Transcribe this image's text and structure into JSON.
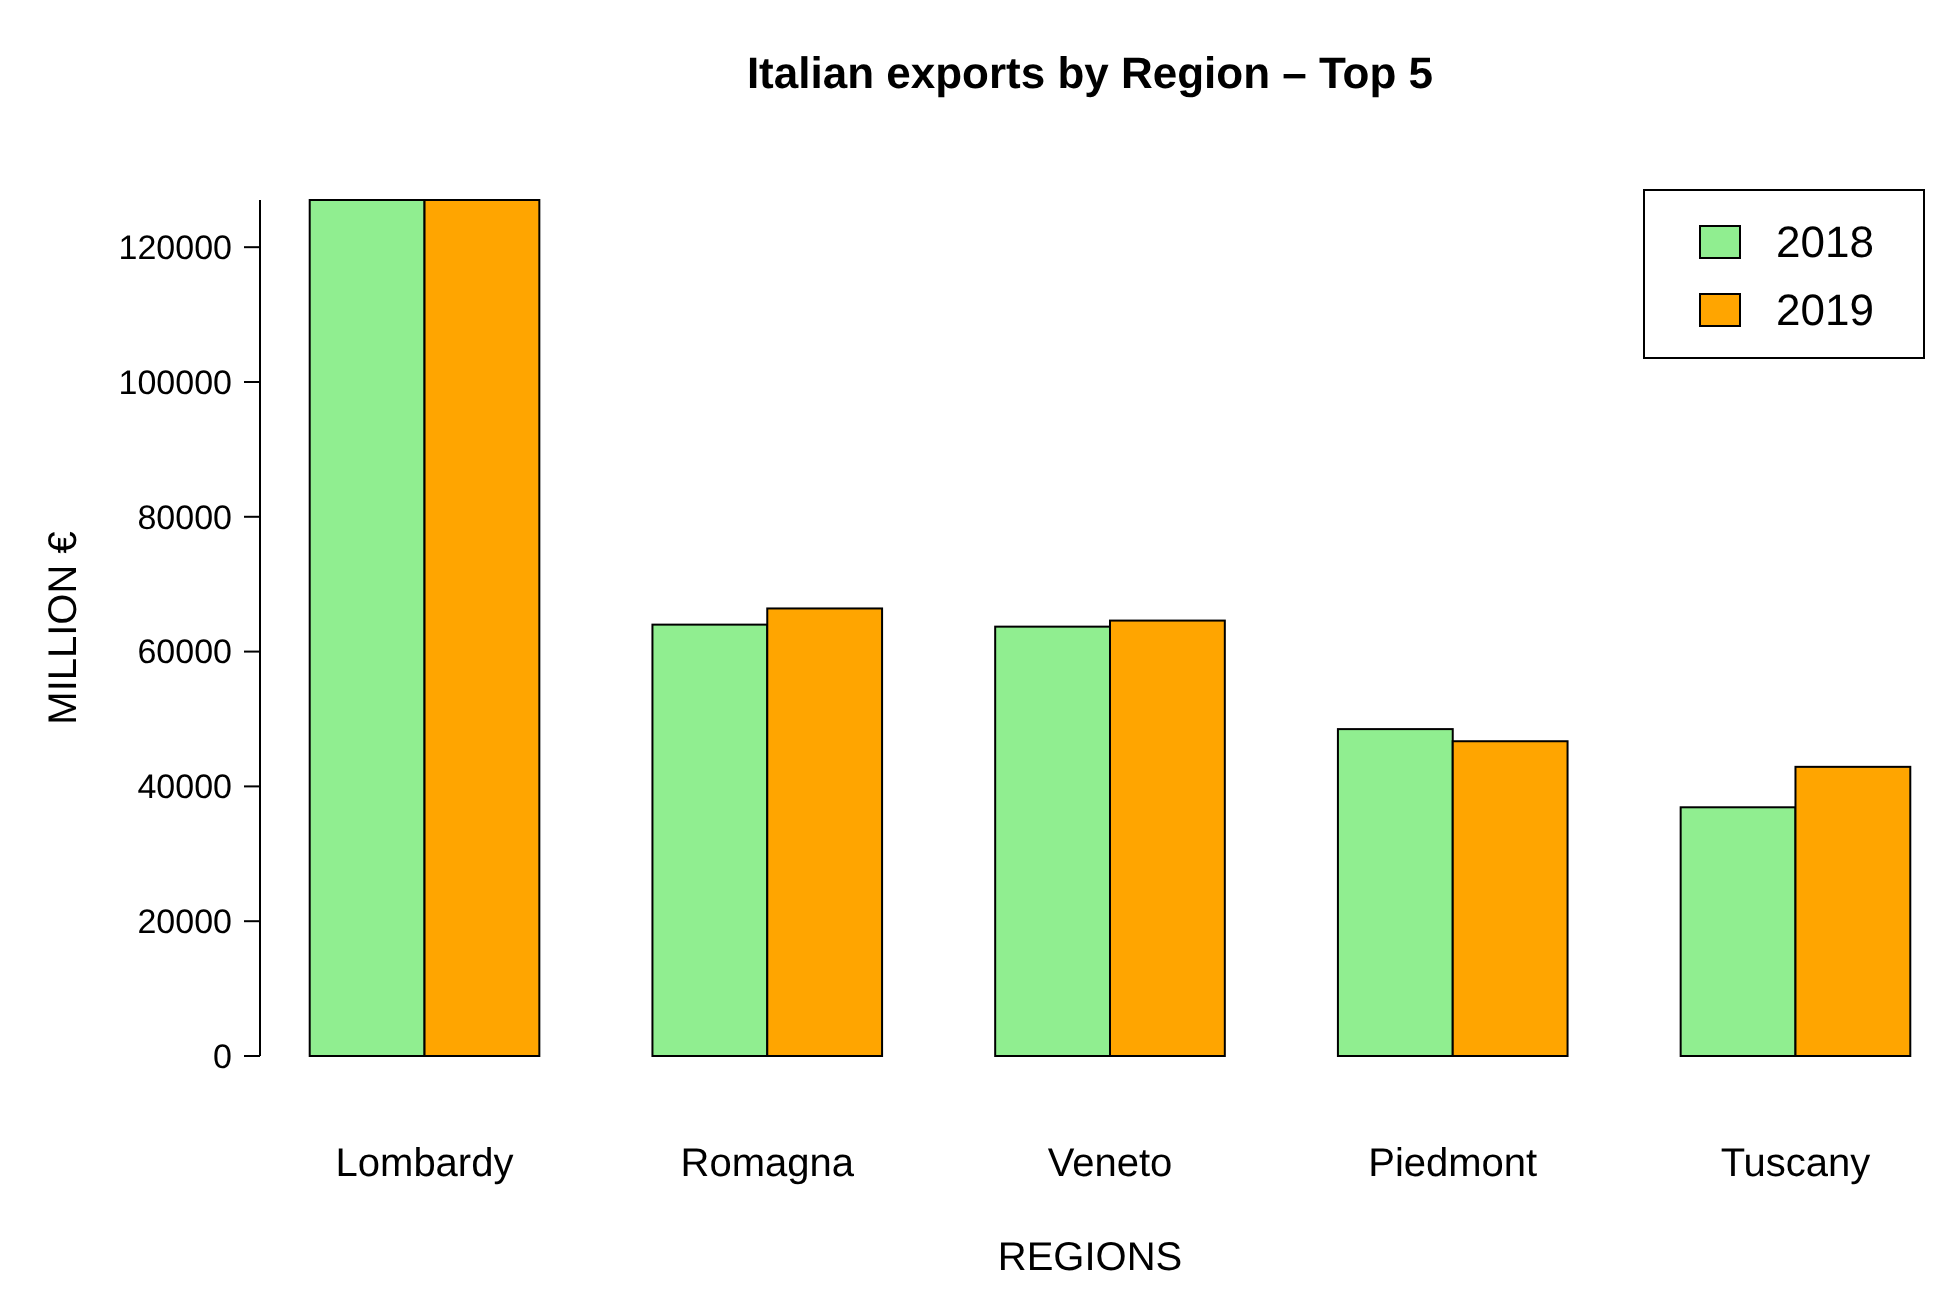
{
  "chart_data": {
    "type": "bar",
    "title": "Italian exports by Region – Top 5",
    "xlabel": "REGIONS",
    "ylabel": "MILLION €",
    "categories": [
      "Lombardy",
      "Romagna",
      "Veneto",
      "Piedmont",
      "Tuscany"
    ],
    "series": [
      {
        "name": "2018",
        "color": "#90ee90",
        "values": [
          127000,
          64000,
          63700,
          48500,
          36900
        ]
      },
      {
        "name": "2019",
        "color": "#ffa500",
        "values": [
          127000,
          66400,
          64600,
          46700,
          42900
        ]
      }
    ],
    "ylim": [
      0,
      127000
    ],
    "yticks": [
      0,
      20000,
      40000,
      60000,
      80000,
      100000,
      120000
    ],
    "legend": "top right",
    "grid": false
  }
}
